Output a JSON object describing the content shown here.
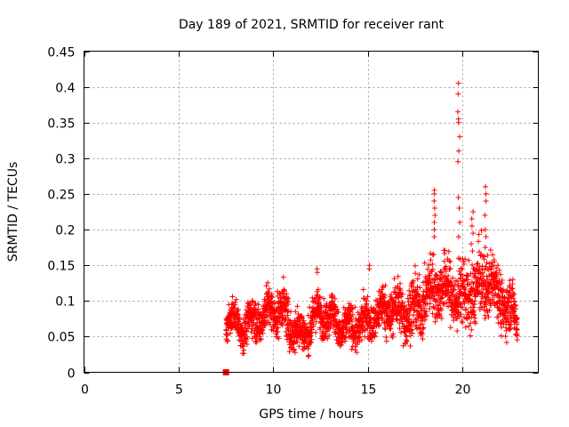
{
  "chart_data": {
    "type": "scatter",
    "title": "Day 189 of 2021, SRMTID for receiver rant",
    "xlabel": "GPS time / hours",
    "ylabel": "SRMTID / TECUs",
    "xlim": [
      0,
      24
    ],
    "ylim": [
      0,
      0.45
    ],
    "xticks": [
      0,
      5,
      10,
      15,
      20
    ],
    "yticks": [
      0,
      0.05,
      0.1,
      0.15,
      0.2,
      0.25,
      0.3,
      0.35,
      0.4,
      0.45
    ],
    "grid": true,
    "marker": "+",
    "color": "#ff0000",
    "square_marker": {
      "x": 7.5,
      "y": 0
    },
    "profile": [
      {
        "x": 7.5,
        "y": 0.08
      },
      {
        "x": 8.5,
        "y": 0.075
      },
      {
        "x": 9.5,
        "y": 0.07
      },
      {
        "x": 10.5,
        "y": 0.085
      },
      {
        "x": 11.5,
        "y": 0.06
      },
      {
        "x": 12.5,
        "y": 0.075
      },
      {
        "x": 13.5,
        "y": 0.065
      },
      {
        "x": 14.5,
        "y": 0.075
      },
      {
        "x": 15.5,
        "y": 0.07
      },
      {
        "x": 16.5,
        "y": 0.09
      },
      {
        "x": 17.5,
        "y": 0.095
      },
      {
        "x": 18.5,
        "y": 0.11
      },
      {
        "x": 19.5,
        "y": 0.11
      },
      {
        "x": 20.5,
        "y": 0.12
      },
      {
        "x": 21.5,
        "y": 0.12
      },
      {
        "x": 22.0,
        "y": 0.095
      },
      {
        "x": 22.8,
        "y": 0.085
      }
    ],
    "spread": [
      {
        "x": 7.5,
        "s": 0.02
      },
      {
        "x": 10.5,
        "s": 0.03
      },
      {
        "x": 12.0,
        "s": 0.025
      },
      {
        "x": 15.0,
        "s": 0.025
      },
      {
        "x": 17.0,
        "s": 0.035
      },
      {
        "x": 19.0,
        "s": 0.04
      },
      {
        "x": 21.0,
        "s": 0.045
      },
      {
        "x": 22.8,
        "s": 0.03
      }
    ],
    "x_start": 7.5,
    "x_end": 22.9,
    "n_points": 2400,
    "spikes": [
      {
        "x": 18.5,
        "values": [
          0.255,
          0.25,
          0.24,
          0.23,
          0.22,
          0.21,
          0.2,
          0.19
        ]
      },
      {
        "x": 19.8,
        "values": [
          0.405,
          0.39,
          0.365,
          0.355,
          0.35,
          0.33,
          0.31,
          0.295,
          0.245,
          0.23,
          0.21,
          0.19
        ]
      },
      {
        "x": 20.5,
        "values": [
          0.225,
          0.215,
          0.205,
          0.195,
          0.18,
          0.17
        ]
      },
      {
        "x": 21.2,
        "values": [
          0.26,
          0.25,
          0.24,
          0.22,
          0.2,
          0.19,
          0.175
        ]
      },
      {
        "x": 15.1,
        "values": [
          0.15,
          0.145
        ]
      },
      {
        "x": 12.3,
        "values": [
          0.145,
          0.14
        ]
      }
    ]
  }
}
